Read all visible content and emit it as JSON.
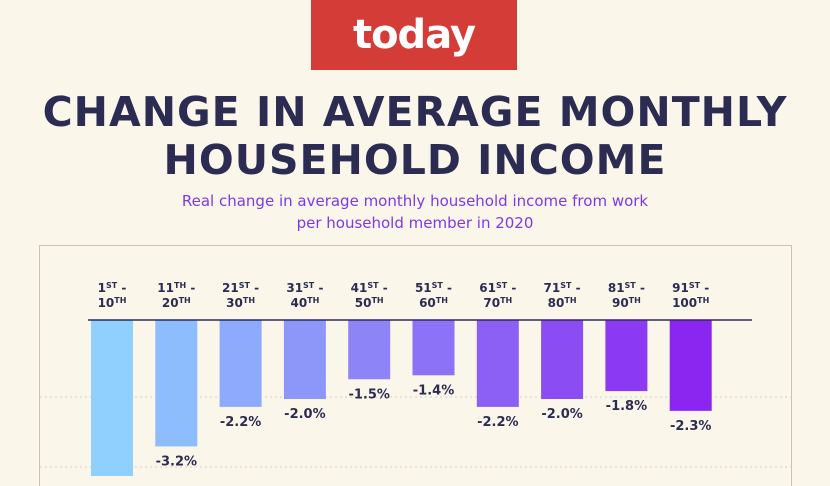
{
  "logo": {
    "text": "today"
  },
  "title": {
    "line1": "CHANGE IN AVERAGE MONTHLY",
    "line2": "HOUSEHOLD INCOME"
  },
  "subtitle": {
    "line1": "Real change in average monthly household income from work",
    "line2": "per household member in 2020"
  },
  "colors": {
    "logo_bg": "#d43d37",
    "title": "#2c2c52",
    "subtitle": "#7d39e6",
    "background": "#faf6ea",
    "bar_gradient_start": "#8fd0ff",
    "bar_gradient_end": "#8a26f0"
  },
  "chart_data": {
    "type": "bar",
    "title": "CHANGE IN AVERAGE MONTHLY HOUSEHOLD INCOME",
    "subtitle": "Real change in average monthly household income from work per household member in 2020",
    "categories": [
      {
        "top": [
          "1",
          "ST",
          " -"
        ],
        "bottom": [
          "10",
          "TH"
        ]
      },
      {
        "top": [
          "11",
          "TH",
          " -"
        ],
        "bottom": [
          "20",
          "TH"
        ]
      },
      {
        "top": [
          "21",
          "ST",
          " -"
        ],
        "bottom": [
          "30",
          "TH"
        ]
      },
      {
        "top": [
          "31",
          "ST",
          " -"
        ],
        "bottom": [
          "40",
          "TH"
        ]
      },
      {
        "top": [
          "41",
          "ST",
          " -"
        ],
        "bottom": [
          "50",
          "TH"
        ]
      },
      {
        "top": [
          "51",
          "ST",
          " -"
        ],
        "bottom": [
          "60",
          "TH"
        ]
      },
      {
        "top": [
          "61",
          "ST",
          " -"
        ],
        "bottom": [
          "70",
          "TH"
        ]
      },
      {
        "top": [
          "71",
          "ST",
          " -"
        ],
        "bottom": [
          "80",
          "TH"
        ]
      },
      {
        "top": [
          "81",
          "ST",
          " -"
        ],
        "bottom": [
          "90",
          "TH"
        ]
      },
      {
        "top": [
          "91",
          "ST",
          " -"
        ],
        "bottom": [
          "100",
          "TH"
        ]
      }
    ],
    "values": [
      null,
      -3.2,
      -2.2,
      -2.0,
      -1.5,
      -1.4,
      -2.2,
      -2.0,
      -1.8,
      -2.3
    ],
    "value_labels": [
      "",
      "-3.2%",
      "-2.2%",
      "-2.0%",
      "-1.5%",
      "-1.4%",
      "-2.2%",
      "-2.0%",
      "-1.8%",
      "-2.3%"
    ],
    "unit": "%",
    "grid": true
  }
}
